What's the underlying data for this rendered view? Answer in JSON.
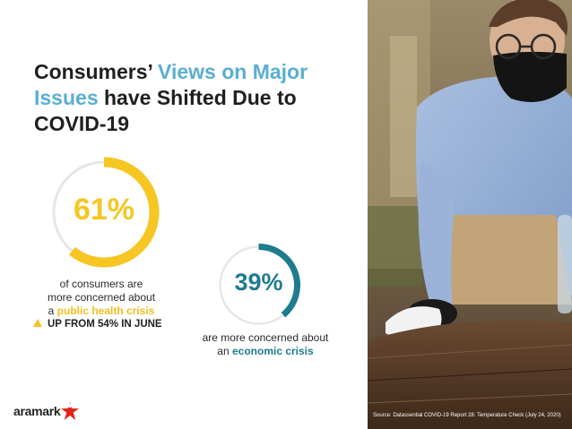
{
  "title": {
    "part1": "Consumers’ ",
    "highlight": "Views on Major Issues",
    "part2": " have Shifted Due to COVID-19"
  },
  "stat1": {
    "value": "61%",
    "fraction": 0.61,
    "caption_line1": "of consumers are",
    "caption_line2": "more concerned about",
    "caption_prefix": "a ",
    "caption_emphasis": "public health crisis",
    "trend": "UP FROM 54% IN JUNE",
    "color": "#f6c623"
  },
  "stat2": {
    "value": "39%",
    "fraction": 0.39,
    "caption_line1": "are more concerned about",
    "caption_prefix": "an ",
    "caption_emphasis": "economic crisis",
    "color": "#1e7c8e"
  },
  "logo": {
    "text": "aramark"
  },
  "source": "Source: Datassential COVID-19 Report 28: Temperature Check (July 24, 2020)"
}
